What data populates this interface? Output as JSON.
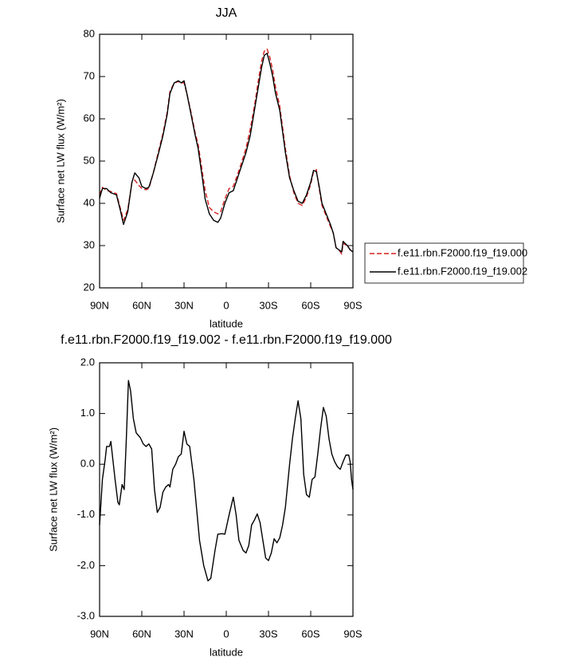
{
  "chart_data": [
    {
      "type": "line",
      "title": "JJA",
      "xlabel": "latitude",
      "ylabel": "Surface net LW flux (W/m²)",
      "x": [
        90,
        88,
        85,
        82,
        78,
        75,
        73,
        70,
        67,
        65,
        62,
        60,
        57,
        55,
        52,
        48,
        45,
        42,
        40,
        37,
        34,
        32,
        30,
        28,
        25,
        22,
        20,
        17,
        15,
        12,
        9,
        6,
        4,
        1,
        -2,
        -5,
        -8,
        -11,
        -14,
        -17,
        -20,
        -23,
        -25,
        -27,
        -29,
        -31,
        -33,
        -35,
        -38,
        -40,
        -42,
        -45,
        -48,
        -51,
        -54,
        -57,
        -60,
        -62,
        -64,
        -66,
        -68,
        -71,
        -74,
        -76,
        -78,
        -80,
        -82,
        -83,
        -86,
        -88,
        -90
      ],
      "series": [
        {
          "name": "f.e11.rbn.F2000.f19_f19.000",
          "color": "#d62020",
          "linestyle": "dashed",
          "values": [
            42,
            43.8,
            43,
            42.8,
            42.3,
            38.5,
            36,
            38.5,
            45,
            45.5,
            44.2,
            43.5,
            43.2,
            43.5,
            47,
            52.5,
            56.5,
            61.5,
            66.5,
            68.5,
            68.8,
            68.5,
            68.5,
            66,
            61.5,
            56.5,
            54,
            47.5,
            43,
            39,
            38,
            37.5,
            38,
            41,
            43.5,
            44,
            46.8,
            49.8,
            53,
            57.5,
            63,
            69.5,
            73.5,
            76,
            76.5,
            74.5,
            71.5,
            67.5,
            63,
            58,
            53,
            46.5,
            42.5,
            40,
            39.5,
            41.5,
            44.5,
            47.5,
            48,
            43.5,
            39.5,
            37,
            34.5,
            33,
            29.5,
            29,
            28,
            30.5,
            30,
            29,
            28.5
          ]
        },
        {
          "name": "f.e11.rbn.F2000.f19_f19.002",
          "color": "#000000",
          "linestyle": "solid",
          "values": [
            41.2,
            43.5,
            43.5,
            42.5,
            42,
            38,
            35,
            38,
            45,
            47.2,
            46,
            44,
            43.5,
            43.8,
            47,
            52,
            56,
            61,
            66,
            68.5,
            69,
            68.5,
            69,
            66,
            61,
            56,
            53,
            46,
            41,
            37.5,
            36,
            35.5,
            36.5,
            40,
            42.5,
            43,
            46,
            49,
            52,
            56,
            62,
            68,
            72,
            75,
            75.5,
            73,
            70,
            66,
            62,
            57,
            52,
            46,
            43,
            40.5,
            40,
            42,
            45,
            47.8,
            47.5,
            44,
            40,
            37.5,
            35,
            33,
            29.5,
            29,
            28.5,
            31,
            30,
            29,
            28.5
          ]
        }
      ],
      "xlim": [
        90,
        -90
      ],
      "xticks": [
        {
          "value": 90,
          "label": "90N"
        },
        {
          "value": 60,
          "label": "60N"
        },
        {
          "value": 30,
          "label": "30N"
        },
        0,
        {
          "value": -30,
          "label": "30S"
        },
        {
          "value": -60,
          "label": "60S"
        },
        {
          "value": -90,
          "label": "90S"
        }
      ],
      "ylim": [
        20,
        80
      ],
      "yticks": [
        20,
        30,
        40,
        50,
        60,
        70,
        80
      ],
      "legend": "right"
    },
    {
      "type": "line",
      "title": "f.e11.rbn.F2000.f19_f19.002 - f.e11.rbn.F2000.f19_f19.000",
      "xlabel": "latitude",
      "ylabel": "Surface net LW flux (W/m²)",
      "x": [
        90,
        88,
        86,
        85,
        83,
        82,
        79,
        77,
        76,
        74,
        72.5,
        71,
        69.5,
        68,
        66,
        64,
        61,
        59,
        57,
        55,
        53,
        51,
        49,
        47,
        45,
        43,
        41,
        40,
        38,
        36,
        34,
        32,
        30,
        28,
        26,
        23,
        21,
        19,
        16,
        13,
        11,
        8,
        6,
        3,
        1,
        -2,
        -5,
        -7,
        -9,
        -12,
        -14,
        -16,
        -18,
        -20,
        -22,
        -24,
        -26,
        -28,
        -30,
        -32,
        -34,
        -36,
        -38,
        -40,
        -42,
        -45,
        -47,
        -49,
        -51,
        -53,
        -55,
        -57,
        -59,
        -61,
        -63,
        -65,
        -67,
        -69,
        -71,
        -73,
        -75,
        -77,
        -79,
        -81,
        -83,
        -85,
        -87,
        -88,
        -89,
        -90
      ],
      "color": "#000000",
      "values": [
        -1.2,
        -0.3,
        0.1,
        0.35,
        0.35,
        0.45,
        -0.3,
        -0.75,
        -0.8,
        -0.4,
        -0.5,
        0.5,
        1.65,
        1.45,
        0.9,
        0.62,
        0.52,
        0.4,
        0.35,
        0.4,
        0.3,
        -0.5,
        -0.95,
        -0.85,
        -0.55,
        -0.45,
        -0.4,
        -0.45,
        -0.1,
        0,
        0.15,
        0.2,
        0.65,
        0.4,
        0.35,
        -0.3,
        -0.9,
        -1.5,
        -2,
        -2.3,
        -2.25,
        -1.7,
        -1.38,
        -1.37,
        -1.38,
        -1,
        -0.65,
        -1,
        -1.5,
        -1.7,
        -1.75,
        -1.6,
        -1.2,
        -1.1,
        -0.98,
        -1.15,
        -1.5,
        -1.85,
        -1.9,
        -1.75,
        -1.47,
        -1.55,
        -1.45,
        -1.2,
        -0.85,
        0,
        0.5,
        0.9,
        1.25,
        0.9,
        -0.2,
        -0.6,
        -0.65,
        -0.3,
        -0.25,
        0.2,
        0.7,
        1.12,
        0.95,
        0.5,
        0.2,
        0.05,
        -0.05,
        -0.1,
        0.05,
        0.18,
        0.18,
        0.05,
        -0.3,
        -0.5
      ],
      "xlim": [
        90,
        -90
      ],
      "xticks": [
        {
          "value": 90,
          "label": "90N"
        },
        {
          "value": 60,
          "label": "60N"
        },
        {
          "value": 30,
          "label": "30N"
        },
        0,
        {
          "value": -30,
          "label": "30S"
        },
        {
          "value": -60,
          "label": "60S"
        },
        {
          "value": -90,
          "label": "90S"
        }
      ],
      "ylim": [
        -3,
        2
      ],
      "yticks": [
        {
          "value": -3,
          "label": "-3.0"
        },
        {
          "value": -2,
          "label": "-2.0"
        },
        {
          "value": -1,
          "label": "-1.0"
        },
        {
          "value": 0,
          "label": "0.0"
        },
        {
          "value": 1,
          "label": "1.0"
        },
        {
          "value": 2,
          "label": "2.0"
        }
      ]
    }
  ]
}
